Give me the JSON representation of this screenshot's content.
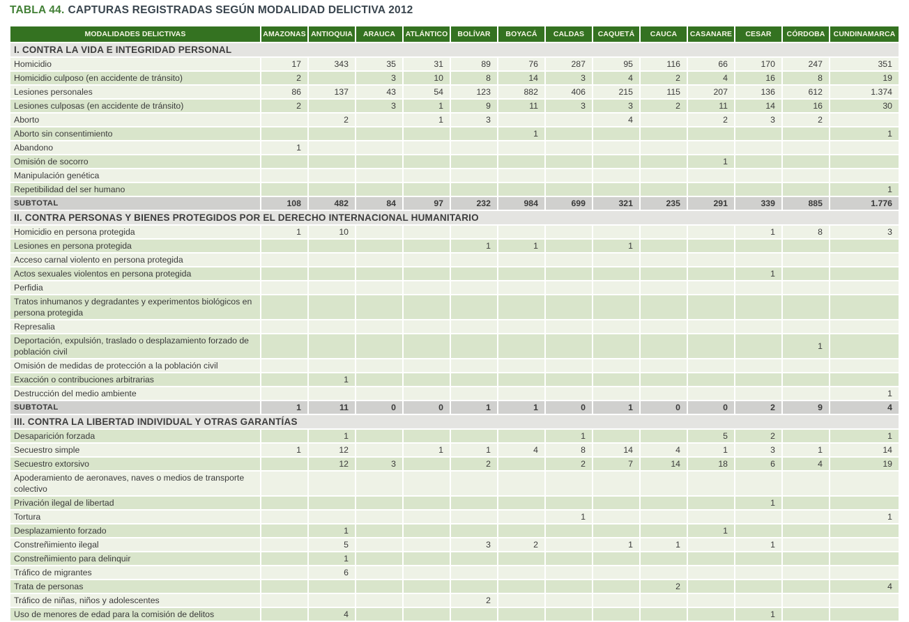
{
  "title": {
    "label": "TABLA 44.",
    "text": "CAPTURAS REGISTRADAS SEGÚN MODALIDAD DELICTIVA 2012"
  },
  "colors": {
    "header_green": "#347221",
    "header_text": "#f6f7e6",
    "title_green": "#417f35",
    "title_dark": "#39454e",
    "section_bg": "#e4e4e1",
    "row_light": "#eef2e6",
    "row_green": "#d9e5cb",
    "subtotal_bg": "#d0d0ce",
    "cell_text": "#3a3a3a"
  },
  "table": {
    "first_column_header": "MODALIDADES DELICTIVAS",
    "columns": [
      "AMAZONAS",
      "ANTIOQUIA",
      "ARAUCA",
      "ATLÁNTICO",
      "BOLÍVAR",
      "BOYACÁ",
      "CALDAS",
      "CAQUETÁ",
      "CAUCA",
      "CASANARE",
      "CESAR",
      "CÓRDOBA",
      "CUNDINAMARCA"
    ],
    "rows": [
      {
        "type": "section",
        "label": "I. CONTRA LA VIDA E INTEGRIDAD PERSONAL"
      },
      {
        "type": "data",
        "label": "Homicidio",
        "values": [
          "17",
          "343",
          "35",
          "31",
          "89",
          "76",
          "287",
          "95",
          "116",
          "66",
          "170",
          "247",
          "351"
        ]
      },
      {
        "type": "data",
        "label": "Homicidio culposo (en accidente de tránsito)",
        "values": [
          "2",
          "",
          "3",
          "10",
          "8",
          "14",
          "3",
          "4",
          "2",
          "4",
          "16",
          "8",
          "19"
        ]
      },
      {
        "type": "data",
        "label": "Lesiones personales",
        "values": [
          "86",
          "137",
          "43",
          "54",
          "123",
          "882",
          "406",
          "215",
          "115",
          "207",
          "136",
          "612",
          "1.374"
        ]
      },
      {
        "type": "data",
        "label": "Lesiones culposas (en accidente de tránsito)",
        "values": [
          "2",
          "",
          "3",
          "1",
          "9",
          "11",
          "3",
          "3",
          "2",
          "11",
          "14",
          "16",
          "30"
        ]
      },
      {
        "type": "data",
        "label": "Aborto",
        "values": [
          "",
          "2",
          "",
          "1",
          "3",
          "",
          "",
          "4",
          "",
          "2",
          "3",
          "2",
          ""
        ]
      },
      {
        "type": "data",
        "label": "Aborto sin consentimiento",
        "values": [
          "",
          "",
          "",
          "",
          "",
          "1",
          "",
          "",
          "",
          "",
          "",
          "",
          "1"
        ]
      },
      {
        "type": "data",
        "label": "Abandono",
        "values": [
          "1",
          "",
          "",
          "",
          "",
          "",
          "",
          "",
          "",
          "",
          "",
          "",
          ""
        ]
      },
      {
        "type": "data",
        "label": "Omisión de socorro",
        "values": [
          "",
          "",
          "",
          "",
          "",
          "",
          "",
          "",
          "",
          "1",
          "",
          "",
          ""
        ]
      },
      {
        "type": "data",
        "label": "Manipulación genética",
        "values": [
          "",
          "",
          "",
          "",
          "",
          "",
          "",
          "",
          "",
          "",
          "",
          "",
          ""
        ]
      },
      {
        "type": "data",
        "label": "Repetibilidad del ser humano",
        "values": [
          "",
          "",
          "",
          "",
          "",
          "",
          "",
          "",
          "",
          "",
          "",
          "",
          "1"
        ]
      },
      {
        "type": "subtotal",
        "label": "SUBTOTAL",
        "values": [
          "108",
          "482",
          "84",
          "97",
          "232",
          "984",
          "699",
          "321",
          "235",
          "291",
          "339",
          "885",
          "1.776"
        ]
      },
      {
        "type": "section",
        "label": "II. CONTRA PERSONAS Y BIENES PROTEGIDOS POR EL DERECHO INTERNACIONAL HUMANITARIO"
      },
      {
        "type": "data",
        "label": "Homicidio en persona protegida",
        "values": [
          "1",
          "10",
          "",
          "",
          "",
          "",
          "",
          "",
          "",
          "",
          "1",
          "8",
          "3"
        ]
      },
      {
        "type": "data",
        "label": "Lesiones en persona protegida",
        "values": [
          "",
          "",
          "",
          "",
          "1",
          "1",
          "",
          "1",
          "",
          "",
          "",
          "",
          ""
        ]
      },
      {
        "type": "data",
        "label": "Acceso carnal violento en persona protegida",
        "values": [
          "",
          "",
          "",
          "",
          "",
          "",
          "",
          "",
          "",
          "",
          "",
          "",
          ""
        ]
      },
      {
        "type": "data",
        "label": "Actos sexuales violentos en persona protegida",
        "values": [
          "",
          "",
          "",
          "",
          "",
          "",
          "",
          "",
          "",
          "",
          "1",
          "",
          ""
        ]
      },
      {
        "type": "data",
        "label": "Perfidia",
        "values": [
          "",
          "",
          "",
          "",
          "",
          "",
          "",
          "",
          "",
          "",
          "",
          "",
          ""
        ]
      },
      {
        "type": "data",
        "label": "Tratos inhumanos y degradantes y experimentos biológicos en persona protegida",
        "values": [
          "",
          "",
          "",
          "",
          "",
          "",
          "",
          "",
          "",
          "",
          "",
          "",
          ""
        ]
      },
      {
        "type": "data",
        "label": "Represalia",
        "values": [
          "",
          "",
          "",
          "",
          "",
          "",
          "",
          "",
          "",
          "",
          "",
          "",
          ""
        ]
      },
      {
        "type": "data",
        "label": "Deportación, expulsión, traslado o desplazamiento forzado de población civil",
        "values": [
          "",
          "",
          "",
          "",
          "",
          "",
          "",
          "",
          "",
          "",
          "",
          "1",
          ""
        ]
      },
      {
        "type": "data",
        "label": "Omisión de medidas de protección a la población civil",
        "values": [
          "",
          "",
          "",
          "",
          "",
          "",
          "",
          "",
          "",
          "",
          "",
          "",
          ""
        ]
      },
      {
        "type": "data",
        "label": "Exacción o contribuciones arbitrarias",
        "values": [
          "",
          "1",
          "",
          "",
          "",
          "",
          "",
          "",
          "",
          "",
          "",
          "",
          ""
        ]
      },
      {
        "type": "data",
        "label": "Destrucción del medio ambiente",
        "values": [
          "",
          "",
          "",
          "",
          "",
          "",
          "",
          "",
          "",
          "",
          "",
          "",
          "1"
        ]
      },
      {
        "type": "subtotal",
        "label": "SUBTOTAL",
        "values": [
          "1",
          "11",
          "0",
          "0",
          "1",
          "1",
          "0",
          "1",
          "0",
          "0",
          "2",
          "9",
          "4"
        ]
      },
      {
        "type": "section",
        "label": "III. CONTRA LA LIBERTAD INDIVIDUAL Y OTRAS GARANTÍAS"
      },
      {
        "type": "data",
        "label": "Desaparición forzada",
        "values": [
          "",
          "1",
          "",
          "",
          "",
          "",
          "1",
          "",
          "",
          "5",
          "2",
          "",
          "1"
        ]
      },
      {
        "type": "data",
        "label": "Secuestro simple",
        "values": [
          "1",
          "12",
          "",
          "1",
          "1",
          "4",
          "8",
          "14",
          "4",
          "1",
          "3",
          "1",
          "14"
        ]
      },
      {
        "type": "data",
        "label": "Secuestro extorsivo",
        "values": [
          "",
          "12",
          "3",
          "",
          "2",
          "",
          "2",
          "7",
          "14",
          "18",
          "6",
          "4",
          "19"
        ]
      },
      {
        "type": "data",
        "label": "Apoderamiento de aeronaves, naves o medios de transporte colectivo",
        "values": [
          "",
          "",
          "",
          "",
          "",
          "",
          "",
          "",
          "",
          "",
          "",
          "",
          ""
        ]
      },
      {
        "type": "data",
        "label": "Privación ilegal de libertad",
        "values": [
          "",
          "",
          "",
          "",
          "",
          "",
          "",
          "",
          "",
          "",
          "1",
          "",
          ""
        ]
      },
      {
        "type": "data",
        "label": "Tortura",
        "values": [
          "",
          "",
          "",
          "",
          "",
          "",
          "1",
          "",
          "",
          "",
          "",
          "",
          "1"
        ]
      },
      {
        "type": "data",
        "label": "Desplazamiento forzado",
        "values": [
          "",
          "1",
          "",
          "",
          "",
          "",
          "",
          "",
          "",
          "1",
          "",
          "",
          ""
        ]
      },
      {
        "type": "data",
        "label": "Constreñimiento ilegal",
        "values": [
          "",
          "5",
          "",
          "",
          "3",
          "2",
          "",
          "1",
          "1",
          "",
          "1",
          "",
          ""
        ]
      },
      {
        "type": "data",
        "label": "Constreñimiento para delinquir",
        "values": [
          "",
          "1",
          "",
          "",
          "",
          "",
          "",
          "",
          "",
          "",
          "",
          "",
          ""
        ]
      },
      {
        "type": "data",
        "label": "Tráfico de migrantes",
        "values": [
          "",
          "6",
          "",
          "",
          "",
          "",
          "",
          "",
          "",
          "",
          "",
          "",
          ""
        ]
      },
      {
        "type": "data",
        "label": "Trata de personas",
        "values": [
          "",
          "",
          "",
          "",
          "",
          "",
          "",
          "",
          "2",
          "",
          "",
          "",
          "4"
        ]
      },
      {
        "type": "data",
        "label": "Tráfico de niñas, niños y adolescentes",
        "values": [
          "",
          "",
          "",
          "",
          "2",
          "",
          "",
          "",
          "",
          "",
          "",
          "",
          ""
        ]
      },
      {
        "type": "data",
        "label": "Uso de menores de edad para la comisión de delitos",
        "values": [
          "",
          "4",
          "",
          "",
          "",
          "",
          "",
          "",
          "",
          "",
          "1",
          "",
          ""
        ]
      }
    ]
  }
}
